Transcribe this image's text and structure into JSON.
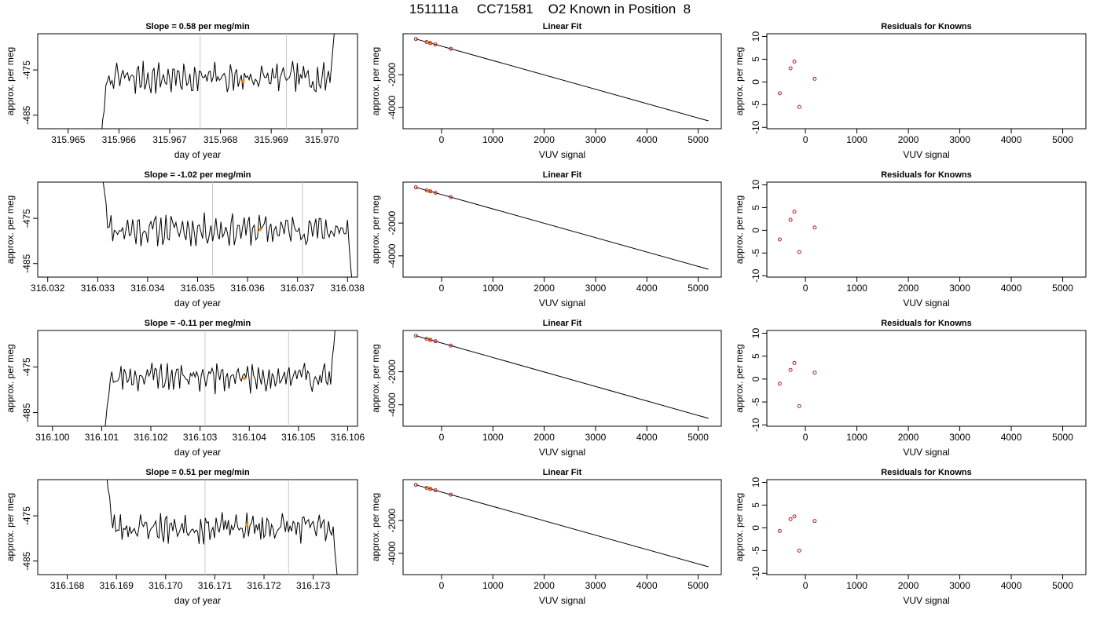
{
  "title": "151111a     CC71581    O2 Known in Position  8",
  "colors": {
    "line": "#000000",
    "known_points": "#b22222",
    "highlight_points": "#ff8c00",
    "vlines": "#c8c8c8"
  },
  "chart_data": [
    {
      "type": "line",
      "panel": "time-series",
      "title": "Slope =  0.58  per meg/min",
      "xlabel": "day of year",
      "ylabel": "approx. per meg",
      "xticks": [
        "315.965",
        "315.966",
        "315.967",
        "315.968",
        "315.969",
        "315.970"
      ],
      "xlim": [
        315.9644,
        315.9707
      ],
      "yticks": [
        "-485",
        "-475"
      ],
      "ylim": [
        -488,
        -467
      ],
      "vlines": [
        315.9676,
        315.9693
      ],
      "marker": {
        "x": 315.96845,
        "y": -477.5
      },
      "series": [
        {
          "start": 315.96565,
          "end": 315.97025,
          "base": -476.8,
          "amp": 2.6,
          "seed": 7,
          "tail_start": -490,
          "tail_end": -466
        }
      ]
    },
    {
      "type": "line",
      "panel": "linear-fit",
      "title": "Linear Fit",
      "xlabel": "VUV signal",
      "ylabel": "approx. per meg",
      "xticks": [
        "0",
        "1000",
        "2000",
        "3000",
        "4000",
        "5000"
      ],
      "xlim": [
        -750,
        5450
      ],
      "yticks": [
        "-4000",
        "-2000"
      ],
      "ylim": [
        -5300,
        500
      ],
      "line": {
        "x": [
          -500,
          5200
        ],
        "y": [
          180,
          -4820
        ]
      },
      "points": [
        {
          "x": -500,
          "y": 180,
          "type": "known"
        },
        {
          "x": -290,
          "y": -5,
          "type": "known"
        },
        {
          "x": -235,
          "y": -50,
          "type": "highlight"
        },
        {
          "x": -215,
          "y": -70,
          "type": "known"
        },
        {
          "x": -120,
          "y": -150,
          "type": "known"
        },
        {
          "x": 180,
          "y": -415,
          "type": "known"
        }
      ]
    },
    {
      "type": "scatter",
      "panel": "residuals",
      "title": "Residuals for Knowns",
      "xlabel": "VUV signal",
      "ylabel": "approx. per meg",
      "xticks": [
        "0",
        "1000",
        "2000",
        "3000",
        "4000",
        "5000"
      ],
      "xlim": [
        -750,
        5450
      ],
      "yticks": [
        "-10",
        "-5",
        "0",
        "5",
        "10"
      ],
      "ylim": [
        -10.3,
        10.6
      ],
      "points": [
        {
          "x": -500,
          "y": -2.5
        },
        {
          "x": -290,
          "y": 3.0
        },
        {
          "x": -215,
          "y": 4.5
        },
        {
          "x": -120,
          "y": -5.5
        },
        {
          "x": 180,
          "y": 0.7
        }
      ]
    },
    {
      "type": "line",
      "panel": "time-series",
      "title": "Slope =  -1.02  per meg/min",
      "xlabel": "day of year",
      "ylabel": "approx. per meg",
      "xticks": [
        "316.032",
        "316.033",
        "316.034",
        "316.035",
        "316.036",
        "316.037",
        "316.038"
      ],
      "xlim": [
        316.0318,
        316.0382
      ],
      "yticks": [
        "-485",
        "-475"
      ],
      "ylim": [
        -488,
        -467
      ],
      "vlines": [
        316.0353,
        316.0371
      ],
      "marker": {
        "x": 316.03625,
        "y": -477.5
      },
      "series": [
        {
          "start": 316.0331,
          "end": 316.0381,
          "base": -477.5,
          "amp": 2.6,
          "seed": 11,
          "tail_start": -466,
          "tail_end": -490
        }
      ]
    },
    {
      "type": "line",
      "panel": "linear-fit",
      "title": "Linear Fit",
      "xlabel": "VUV signal",
      "ylabel": "approx. per meg",
      "xticks": [
        "0",
        "1000",
        "2000",
        "3000",
        "4000",
        "5000"
      ],
      "xlim": [
        -750,
        5450
      ],
      "yticks": [
        "-4000",
        "-2000"
      ],
      "ylim": [
        -5300,
        500
      ],
      "line": {
        "x": [
          -500,
          5200
        ],
        "y": [
          180,
          -4820
        ]
      },
      "points": [
        {
          "x": -500,
          "y": 180,
          "type": "known"
        },
        {
          "x": -290,
          "y": -5,
          "type": "known"
        },
        {
          "x": -235,
          "y": -50,
          "type": "highlight"
        },
        {
          "x": -215,
          "y": -70,
          "type": "known"
        },
        {
          "x": -120,
          "y": -150,
          "type": "known"
        },
        {
          "x": 180,
          "y": -415,
          "type": "known"
        }
      ]
    },
    {
      "type": "scatter",
      "panel": "residuals",
      "title": "Residuals for Knowns",
      "xlabel": "VUV signal",
      "ylabel": "approx. per meg",
      "xticks": [
        "0",
        "1000",
        "2000",
        "3000",
        "4000",
        "5000"
      ],
      "xlim": [
        -750,
        5450
      ],
      "yticks": [
        "-10",
        "-5",
        "0",
        "5",
        "10"
      ],
      "ylim": [
        -10.3,
        10.6
      ],
      "points": [
        {
          "x": -500,
          "y": -2.0
        },
        {
          "x": -290,
          "y": 2.3
        },
        {
          "x": -215,
          "y": 4.1
        },
        {
          "x": -120,
          "y": -4.8
        },
        {
          "x": 180,
          "y": 0.6
        }
      ]
    },
    {
      "type": "line",
      "panel": "time-series",
      "title": "Slope =  -0.11  per meg/min",
      "xlabel": "day of year",
      "ylabel": "approx. per meg",
      "xticks": [
        "316.100",
        "316.101",
        "316.102",
        "316.103",
        "316.104",
        "316.105",
        "316.106"
      ],
      "xlim": [
        316.0997,
        316.1062
      ],
      "yticks": [
        "-485",
        "-475"
      ],
      "ylim": [
        -488,
        -467
      ],
      "vlines": [
        316.1031,
        316.1048
      ],
      "marker": {
        "x": 316.1039,
        "y": -477.5
      },
      "series": [
        {
          "start": 316.10105,
          "end": 316.10575,
          "base": -477.2,
          "amp": 2.6,
          "seed": 19,
          "tail_start": -490,
          "tail_end": -466
        }
      ]
    },
    {
      "type": "line",
      "panel": "linear-fit",
      "title": "Linear Fit",
      "xlabel": "VUV signal",
      "ylabel": "approx. per meg",
      "xticks": [
        "0",
        "1000",
        "2000",
        "3000",
        "4000",
        "5000"
      ],
      "xlim": [
        -750,
        5450
      ],
      "yticks": [
        "-4000",
        "-2000"
      ],
      "ylim": [
        -5300,
        500
      ],
      "line": {
        "x": [
          -500,
          5200
        ],
        "y": [
          180,
          -4820
        ]
      },
      "points": [
        {
          "x": -500,
          "y": 180,
          "type": "known"
        },
        {
          "x": -290,
          "y": -5,
          "type": "known"
        },
        {
          "x": -235,
          "y": -50,
          "type": "highlight"
        },
        {
          "x": -215,
          "y": -70,
          "type": "known"
        },
        {
          "x": -120,
          "y": -150,
          "type": "known"
        },
        {
          "x": 180,
          "y": -415,
          "type": "known"
        }
      ]
    },
    {
      "type": "scatter",
      "panel": "residuals",
      "title": "Residuals for Knowns",
      "xlabel": "VUV signal",
      "ylabel": "approx. per meg",
      "xticks": [
        "0",
        "1000",
        "2000",
        "3000",
        "4000",
        "5000"
      ],
      "xlim": [
        -750,
        5450
      ],
      "yticks": [
        "-10",
        "-5",
        "0",
        "5",
        "10"
      ],
      "ylim": [
        -10.3,
        10.6
      ],
      "points": [
        {
          "x": -500,
          "y": -1.0
        },
        {
          "x": -290,
          "y": 2.0
        },
        {
          "x": -215,
          "y": 3.5
        },
        {
          "x": -120,
          "y": -5.9
        },
        {
          "x": 180,
          "y": 1.4
        }
      ]
    },
    {
      "type": "line",
      "panel": "time-series",
      "title": "Slope =  0.51  per meg/min",
      "xlabel": "day of year",
      "ylabel": "approx. per meg",
      "xticks": [
        "316.168",
        "316.169",
        "316.170",
        "316.171",
        "316.172",
        "316.173"
      ],
      "xlim": [
        316.1674,
        316.1739
      ],
      "yticks": [
        "-485",
        "-475"
      ],
      "ylim": [
        -488,
        -467
      ],
      "vlines": [
        316.1708,
        316.1725
      ],
      "marker": {
        "x": 316.17165,
        "y": -477.0
      },
      "series": [
        {
          "start": 316.1688,
          "end": 316.1735,
          "base": -477.6,
          "amp": 2.6,
          "seed": 23,
          "tail_start": -466,
          "tail_end": -490
        }
      ]
    },
    {
      "type": "line",
      "panel": "linear-fit",
      "title": "Linear Fit",
      "xlabel": "VUV signal",
      "ylabel": "approx. per meg",
      "xticks": [
        "0",
        "1000",
        "2000",
        "3000",
        "4000",
        "5000"
      ],
      "xlim": [
        -750,
        5450
      ],
      "yticks": [
        "-4000",
        "-2000"
      ],
      "ylim": [
        -5300,
        500
      ],
      "line": {
        "x": [
          -500,
          5200
        ],
        "y": [
          180,
          -4820
        ]
      },
      "points": [
        {
          "x": -500,
          "y": 180,
          "type": "known"
        },
        {
          "x": -290,
          "y": -5,
          "type": "known"
        },
        {
          "x": -235,
          "y": -50,
          "type": "highlight"
        },
        {
          "x": -215,
          "y": -70,
          "type": "known"
        },
        {
          "x": -120,
          "y": -150,
          "type": "known"
        },
        {
          "x": 180,
          "y": -415,
          "type": "known"
        }
      ]
    },
    {
      "type": "scatter",
      "panel": "residuals",
      "title": "Residuals for Knowns",
      "xlabel": "VUV signal",
      "ylabel": "approx. per meg",
      "xticks": [
        "0",
        "1000",
        "2000",
        "3000",
        "4000",
        "5000"
      ],
      "xlim": [
        -750,
        5450
      ],
      "yticks": [
        "-10",
        "-5",
        "0",
        "5",
        "10"
      ],
      "ylim": [
        -10.3,
        10.6
      ],
      "points": [
        {
          "x": -500,
          "y": -0.7
        },
        {
          "x": -290,
          "y": 1.9
        },
        {
          "x": -215,
          "y": 2.5
        },
        {
          "x": -120,
          "y": -5.0
        },
        {
          "x": 180,
          "y": 1.5
        }
      ]
    }
  ]
}
